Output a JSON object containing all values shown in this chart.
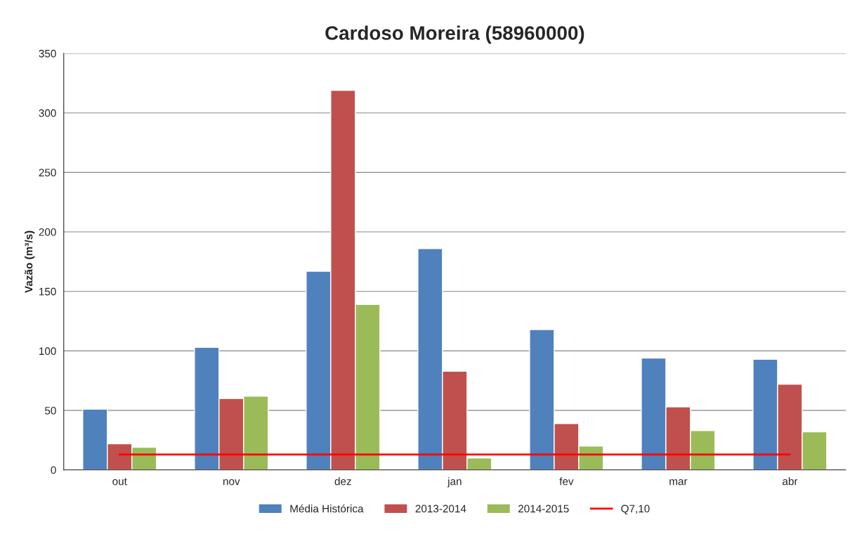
{
  "chart_data": {
    "type": "bar",
    "title": "Cardoso Moreira (58960000)",
    "ylabel": "Vazão (m³/s)",
    "categories": [
      "out",
      "nov",
      "dez",
      "jan",
      "fev",
      "mar",
      "abr"
    ],
    "series": [
      {
        "name": "Média Histórica",
        "color": "#4f81bd",
        "values": [
          51,
          103,
          167,
          186,
          118,
          94,
          93
        ]
      },
      {
        "name": "2013-2014",
        "color": "#c0504d",
        "values": [
          22,
          60,
          319,
          83,
          39,
          53,
          72
        ]
      },
      {
        "name": "2014-2015",
        "color": "#9bbb59",
        "values": [
          19,
          62,
          139,
          10,
          20,
          33,
          32
        ]
      },
      {
        "name": "Q7,10",
        "type": "line",
        "color": "#ff0000",
        "values": [
          13,
          13,
          13,
          13,
          13,
          13,
          13
        ]
      }
    ],
    "ylim": [
      0,
      350
    ],
    "yticks": [
      0,
      50,
      100,
      150,
      200,
      250,
      300,
      350
    ],
    "grid": "y",
    "legend": "bottom"
  }
}
